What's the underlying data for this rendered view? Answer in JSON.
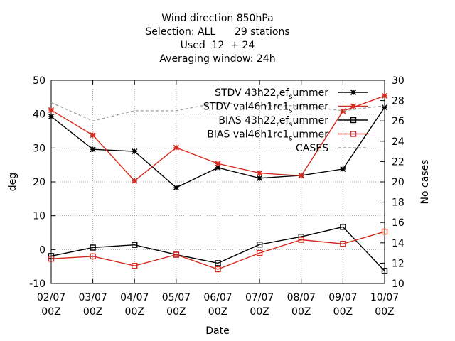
{
  "chart_data": {
    "type": "line",
    "title_lines": [
      "Wind direction 850hPa",
      "Selection: ALL      29 stations",
      "Used  12  + 24",
      "Averaging window: 24h"
    ],
    "xlabel": "Date",
    "ylabel": "deg",
    "y2label": "No cases",
    "categories": [
      "02/07 00Z",
      "03/07 00Z",
      "04/07 00Z",
      "05/07 00Z",
      "06/07 00Z",
      "07/07 00Z",
      "08/07 00Z",
      "09/07 00Z",
      "10/07 00Z"
    ],
    "x_ticks": [
      {
        "top": "02/07",
        "bottom": "00Z"
      },
      {
        "top": "03/07",
        "bottom": "00Z"
      },
      {
        "top": "04/07",
        "bottom": "00Z"
      },
      {
        "top": "05/07",
        "bottom": "00Z"
      },
      {
        "top": "06/07",
        "bottom": "00Z"
      },
      {
        "top": "07/07",
        "bottom": "00Z"
      },
      {
        "top": "08/07",
        "bottom": "00Z"
      },
      {
        "top": "09/07",
        "bottom": "00Z"
      },
      {
        "top": "10/07",
        "bottom": "00Z"
      }
    ],
    "ylim": [
      -10,
      50
    ],
    "yticks": [
      -10,
      0,
      10,
      20,
      30,
      40,
      50
    ],
    "y2lim": [
      10,
      30
    ],
    "y2ticks": [
      10,
      12,
      14,
      16,
      18,
      20,
      22,
      24,
      26,
      28,
      30
    ],
    "grid": true,
    "legend_position": "top-right",
    "series": [
      {
        "name": "STDV 43h22_ref_summer",
        "axis": "left",
        "color": "#000000",
        "marker": "star",
        "dashed": false,
        "values": [
          39.3,
          29.6,
          29.0,
          18.3,
          24.2,
          21.1,
          21.9,
          23.8,
          42.0
        ]
      },
      {
        "name": "STDV val46h1rc1_summer",
        "axis": "left",
        "color": "#d42a1e",
        "marker": "star",
        "dashed": false,
        "values": [
          41.2,
          33.8,
          20.3,
          30.1,
          25.4,
          22.6,
          21.8,
          40.9,
          45.4
        ]
      },
      {
        "name": "BIAS 43h22_ref_summer",
        "axis": "left",
        "color": "#000000",
        "marker": "square",
        "dashed": false,
        "values": [
          -1.9,
          0.6,
          1.4,
          -1.5,
          -4.0,
          1.5,
          3.8,
          6.7,
          -6.3
        ]
      },
      {
        "name": "BIAS val46h1rc1_summer",
        "axis": "left",
        "color": "#d42a1e",
        "marker": "square",
        "dashed": false,
        "values": [
          -2.7,
          -2.0,
          -4.8,
          -1.5,
          -5.8,
          -1.0,
          2.9,
          1.7,
          5.3
        ]
      },
      {
        "name": "CASES",
        "axis": "right",
        "color": "#a0a0a0",
        "marker": "none",
        "dashed": true,
        "values": [
          27.8,
          26.0,
          27.0,
          27.0,
          27.8,
          27.5,
          27.5,
          27.0,
          27.5
        ]
      }
    ]
  },
  "legend": {
    "entries": [
      {
        "prefix": "STDV 43h22",
        "sub": "r",
        "mid": "ef",
        "sub2": "s",
        "suffix": "ummer"
      },
      {
        "prefix": "STDV val46h1rc1",
        "sub": "s",
        "mid": "",
        "sub2": "",
        "suffix": "ummer"
      },
      {
        "prefix": "BIAS 43h22",
        "sub": "r",
        "mid": "ef",
        "sub2": "s",
        "suffix": "ummer"
      },
      {
        "prefix": "BIAS val46h1rc1",
        "sub": "s",
        "mid": "",
        "sub2": "",
        "suffix": "ummer"
      },
      {
        "prefix": "CASES",
        "sub": "",
        "mid": "",
        "sub2": "",
        "suffix": ""
      }
    ]
  }
}
